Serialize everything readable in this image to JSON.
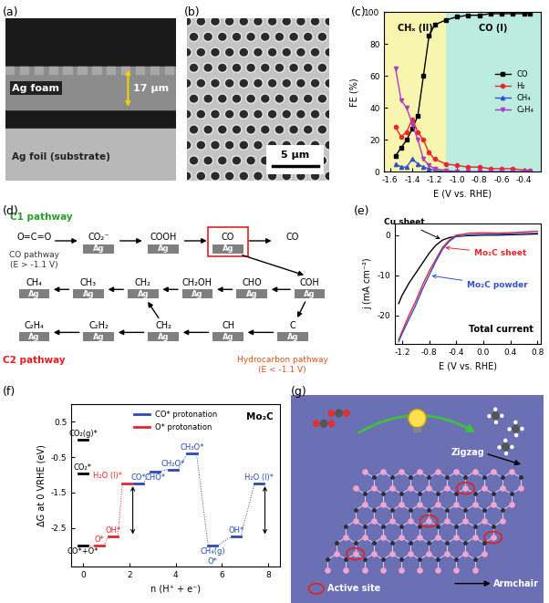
{
  "chart_data": [
    {
      "panel": "(c)",
      "type": "line",
      "x_label": "E (V vs. RHE)",
      "y_label": "FE (%)",
      "x": [
        -1.55,
        -1.5,
        -1.45,
        -1.4,
        -1.35,
        -1.3,
        -1.25,
        -1.2,
        -1.1,
        -1.0,
        -0.9,
        -0.8,
        -0.7,
        -0.6,
        -0.5,
        -0.4,
        -0.35
      ],
      "xlim": [
        -1.65,
        -0.25
      ],
      "xticks": [
        -1.6,
        -1.4,
        -1.2,
        -1.0,
        -0.8,
        -0.6,
        -0.4
      ],
      "ylim": [
        0,
        100
      ],
      "yticks": [
        0,
        20,
        40,
        60,
        80,
        100
      ],
      "legend": "center right",
      "regions": [
        {
          "label": "CHₓ (II)",
          "from": -1.65,
          "to": -1.1,
          "color": "#f4ee6e"
        },
        {
          "label": "CO (I)",
          "from": -1.1,
          "to": -0.25,
          "color": "#86dcc8"
        }
      ],
      "series": [
        {
          "name": "CO",
          "color": "#000000",
          "marker": "square",
          "values": [
            10,
            15,
            20,
            27,
            35,
            60,
            85,
            92,
            95,
            97,
            98,
            98,
            99,
            99,
            99,
            99,
            99
          ]
        },
        {
          "name": "H₂",
          "color": "#e8262b",
          "marker": "circle",
          "values": [
            28,
            22,
            25,
            33,
            25,
            20,
            12,
            8,
            5,
            4,
            3,
            3,
            2,
            2,
            2,
            1,
            1
          ]
        },
        {
          "name": "CH₄",
          "color": "#3050c8",
          "marker": "triangle",
          "values": [
            5,
            3,
            3,
            8,
            5,
            3,
            2,
            1,
            0,
            0,
            0,
            0,
            0,
            0,
            0,
            0,
            0
          ]
        },
        {
          "name": "C₂H₄",
          "color": "#b03cc0",
          "marker": "triangle_down",
          "values": [
            65,
            45,
            40,
            30,
            20,
            8,
            4,
            2,
            1,
            0,
            0,
            0,
            0,
            0,
            0,
            0,
            0
          ]
        }
      ]
    },
    {
      "panel": "(e)",
      "type": "line",
      "x_label": "E (V vs. RHE)",
      "y_label": "j (mA cm⁻²)",
      "annotation": "Total current",
      "x": [
        0.8,
        0.6,
        0.4,
        0.2,
        0.0,
        -0.2,
        -0.4,
        -0.5,
        -0.6,
        -0.7,
        -0.8,
        -0.9,
        -1.0,
        -1.1,
        -1.2,
        -1.25
      ],
      "xlim": [
        -1.3,
        0.85
      ],
      "xticks": [
        -1.2,
        -0.8,
        -0.4,
        0.0,
        0.4,
        0.8
      ],
      "ylim": [
        -27,
        3
      ],
      "yticks": [
        -20,
        -10,
        0
      ],
      "series": [
        {
          "name": "Cu sheet",
          "color": "#000000",
          "values": [
            0.3,
            0.2,
            0.1,
            0,
            0,
            -0.1,
            -0.3,
            -0.6,
            -1.2,
            -2.5,
            -4.5,
            -7,
            -9.5,
            -12,
            -15,
            -17
          ]
        },
        {
          "name": "Mo₂C sheet",
          "color": "#e8262b",
          "values": [
            1.0,
            0.8,
            0.6,
            0.5,
            0.6,
            0.5,
            0,
            -1.2,
            -3,
            -6,
            -9,
            -12.5,
            -16.5,
            -20,
            -24,
            -26
          ]
        },
        {
          "name": "Mo₂C powder",
          "color": "#3050c8",
          "values": [
            0.5,
            0.4,
            0.3,
            0.2,
            0.2,
            0.1,
            -0.3,
            -1.5,
            -3.5,
            -6.5,
            -10,
            -13.5,
            -17.5,
            -21,
            -24.5,
            -26.5
          ]
        }
      ]
    },
    {
      "panel": "(f)",
      "type": "step",
      "title": "Mo₂C",
      "x_label": "n (H⁺ + e⁻)",
      "y_label": "ΔG at 0 VRHE (eV)",
      "xlim": [
        -0.5,
        8.5
      ],
      "xticks": [
        0,
        2,
        4,
        6,
        8
      ],
      "ylim": [
        -3.6,
        1.0
      ],
      "yticks": [
        -2.5,
        -1.5,
        -0.5,
        0.5
      ],
      "legend": "upper center",
      "levels": [
        {
          "label": "CO₂(g)*",
          "x": 0,
          "value": 0.0
        },
        {
          "label": "CO₂*",
          "x": 0,
          "value": -0.95
        },
        {
          "label": "CO*+O*",
          "x": 0,
          "value": -3.0
        }
      ],
      "series": [
        {
          "name": "CO* protonation",
          "color": "#2a4bb0",
          "x": [
            2.4,
            3.1,
            3.9,
            4.7,
            5.6,
            6.6,
            7.6
          ],
          "values": [
            -1.25,
            -0.9,
            -0.85,
            -0.4,
            -3.0,
            -2.75,
            -1.25
          ],
          "point_labels": [
            "CO*",
            "CHO*",
            "CH₂O*",
            "CH₃O*",
            "CH₄(g)\nO*",
            "OH*",
            "H₂O (l)*"
          ]
        },
        {
          "name": "O* protonation",
          "color": "#e8262b",
          "x": [
            0.7,
            1.3,
            1.9
          ],
          "values": [
            -3.0,
            -2.75,
            -1.25
          ],
          "point_labels": [
            "O*",
            "OH*",
            "H₂O (l)*"
          ]
        }
      ]
    }
  ],
  "images": [
    {
      "panel": "(a)",
      "layer": "Ag foam",
      "thickness": "17 μm",
      "substrate": "Ag foil (substrate)"
    },
    {
      "panel": "(b)",
      "scale_bar": "5 μm"
    }
  ],
  "diagrams": [
    {
      "panel": "(d)",
      "c1_label": "C1 pathway",
      "co_label": "CO pathway\n(E > -1.1 V)",
      "hydrocarbon_label": "Hydrocarbon pathway\n(E < -1.1 V)",
      "c2_label": "C2 pathway",
      "surface_label": "Ag",
      "rows": [
        [
          {
            "label": "O=C=O",
            "surface": false
          },
          {
            "label": "CO₂⁻",
            "surface": true
          },
          {
            "label": "COOH",
            "surface": true
          },
          {
            "label": "CO",
            "surface": true,
            "highlight": true
          },
          {
            "label": "CO",
            "surface": false
          }
        ],
        [
          {
            "label": "CH₄",
            "surface": true
          },
          {
            "label": "CH₃",
            "surface": true
          },
          {
            "label": "CH₂",
            "surface": true
          },
          {
            "label": "CH₂OH",
            "surface": true
          },
          {
            "label": "CHO",
            "surface": true
          }
        ],
        [
          {
            "label": "C₂H₄",
            "surface": true
          },
          {
            "label": "C₂H₂",
            "surface": true
          },
          {
            "label": "CH₂",
            "surface": true
          },
          {
            "label": "CH",
            "surface": true
          },
          {
            "label": "C",
            "surface": true
          }
        ]
      ],
      "branch": {
        "label": "COH",
        "surface": true
      }
    },
    {
      "panel": "(g)",
      "zigzag": "Zigzag",
      "armchair": "Armchair",
      "active_site": "Active site"
    }
  ]
}
